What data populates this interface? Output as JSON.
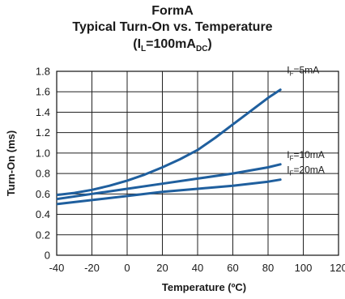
{
  "chart_data": {
    "type": "line",
    "title_line1": "FormA",
    "title_line2": "Typical Turn-On vs. Temperature",
    "title_line3": {
      "pre": "(I",
      "sub1": "L",
      "mid": "=100mA",
      "sub2": "DC",
      "post": ")"
    },
    "xlabel": "Temperature (ºC)",
    "ylabel": "Turn-On (ms)",
    "xlim": [
      -40,
      120
    ],
    "ylim": [
      0,
      1.8
    ],
    "xticks": [
      "-40",
      "-20",
      "0",
      "20",
      "40",
      "60",
      "80",
      "100",
      "120"
    ],
    "yticks": [
      "0",
      "0.2",
      "0.4",
      "0.6",
      "0.8",
      "1.0",
      "1.2",
      "1.4",
      "1.6",
      "1.8"
    ],
    "grid": true,
    "line_color": "#1f5f9e",
    "series": [
      {
        "name": {
          "pre": "I",
          "sub": "F",
          "post": "=5mA"
        },
        "x": [
          -40,
          -30,
          -20,
          -10,
          0,
          10,
          20,
          30,
          40,
          50,
          60,
          70,
          80,
          87
        ],
        "y": [
          0.59,
          0.61,
          0.64,
          0.68,
          0.73,
          0.79,
          0.86,
          0.94,
          1.03,
          1.15,
          1.28,
          1.41,
          1.54,
          1.62
        ]
      },
      {
        "name": {
          "pre": "I",
          "sub": "F",
          "post": "=10mA"
        },
        "x": [
          -40,
          -20,
          0,
          20,
          40,
          60,
          80,
          87
        ],
        "y": [
          0.55,
          0.6,
          0.65,
          0.7,
          0.75,
          0.8,
          0.86,
          0.89
        ]
      },
      {
        "name": {
          "pre": "I",
          "sub": "F",
          "post": "=20mA"
        },
        "x": [
          -40,
          -20,
          0,
          20,
          40,
          60,
          80,
          87
        ],
        "y": [
          0.5,
          0.54,
          0.58,
          0.62,
          0.65,
          0.68,
          0.72,
          0.74
        ]
      }
    ]
  }
}
